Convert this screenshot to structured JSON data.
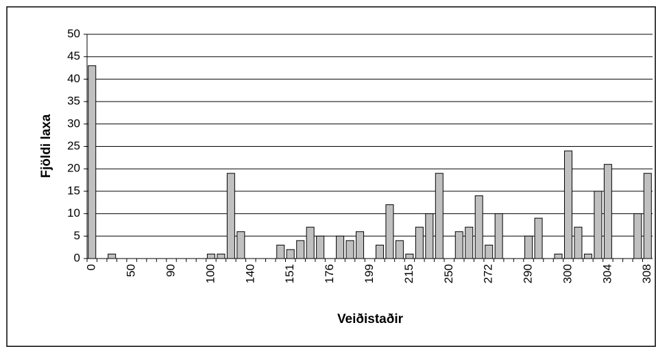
{
  "chart_data": {
    "type": "bar",
    "x_label": "Veiðistaðir",
    "y_label": "Fjöldi laxa",
    "categories": [
      "0",
      null,
      null,
      null,
      "50",
      null,
      null,
      null,
      "90",
      null,
      null,
      null,
      "100",
      null,
      null,
      null,
      "140",
      null,
      null,
      null,
      "151",
      null,
      null,
      null,
      "176",
      null,
      null,
      null,
      "199",
      null,
      null,
      null,
      "215",
      null,
      null,
      null,
      "250",
      null,
      null,
      null,
      "272",
      null,
      null,
      null,
      "290",
      null,
      null,
      null,
      "300",
      null,
      null,
      null,
      "304",
      null,
      null,
      null,
      "308"
    ],
    "values": [
      43,
      0,
      1,
      0,
      0,
      0,
      0,
      0,
      0,
      0,
      0,
      0,
      1,
      1,
      19,
      6,
      0,
      0,
      0,
      3,
      2,
      4,
      7,
      5,
      0,
      5,
      4,
      6,
      0,
      3,
      12,
      4,
      1,
      7,
      10,
      19,
      0,
      6,
      7,
      14,
      3,
      10,
      0,
      0,
      5,
      9,
      0,
      1,
      24,
      7,
      1,
      15,
      21,
      0,
      0,
      10,
      19
    ],
    "color": "#c0c0c0",
    "ylim": [
      0,
      50
    ],
    "yticks": [
      0,
      5,
      10,
      15,
      20,
      25,
      30,
      35,
      40,
      45,
      50
    ],
    "grid": true
  }
}
